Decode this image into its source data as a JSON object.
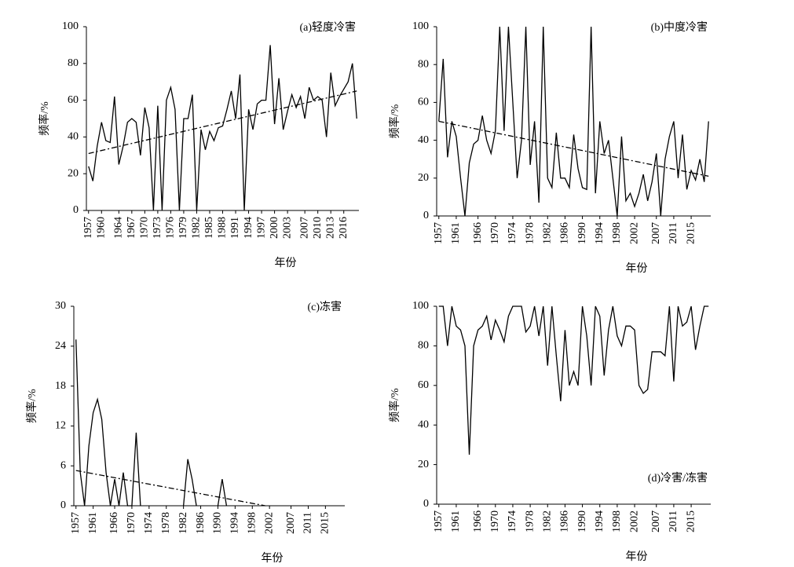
{
  "chart_data": [
    {
      "type": "line",
      "annotation": "(a)轻度冷害",
      "annotation_corner": "top-right",
      "xlabel": "年份",
      "ylabel": "频率/%",
      "x": [
        1957,
        1958,
        1959,
        1960,
        1961,
        1962,
        1963,
        1964,
        1965,
        1966,
        1967,
        1968,
        1969,
        1970,
        1971,
        1972,
        1973,
        1974,
        1975,
        1976,
        1977,
        1978,
        1979,
        1980,
        1981,
        1982,
        1983,
        1984,
        1985,
        1986,
        1987,
        1988,
        1989,
        1990,
        1991,
        1992,
        1993,
        1994,
        1995,
        1996,
        1997,
        1998,
        1999,
        2000,
        2001,
        2002,
        2003,
        2004,
        2005,
        2006,
        2007,
        2008,
        2009,
        2010,
        2011,
        2012,
        2013,
        2014,
        2015,
        2016,
        2017,
        2018,
        2019
      ],
      "series": [
        {
          "color": "#000000",
          "values": [
            24,
            16,
            35,
            48,
            38,
            37,
            62,
            25,
            35,
            48,
            50,
            48,
            30,
            56,
            45,
            0,
            57,
            0,
            60,
            67,
            55,
            0,
            50,
            50,
            63,
            0,
            44,
            33,
            43,
            38,
            45,
            46,
            55,
            65,
            50,
            74,
            0,
            55,
            44,
            58,
            60,
            60,
            90,
            47,
            72,
            44,
            54,
            63,
            56,
            62,
            50,
            67,
            60,
            62,
            60,
            40,
            75,
            57,
            62,
            66,
            70,
            80,
            50
          ]
        }
      ],
      "trend": {
        "x": [
          1957,
          2019
        ],
        "values": [
          31,
          65
        ]
      },
      "xlim": [
        1956.5,
        2019.5
      ],
      "xticks": [
        1957,
        1960,
        1964,
        1967,
        1970,
        1973,
        1976,
        1979,
        1982,
        1985,
        1988,
        1991,
        1994,
        1997,
        2000,
        2003,
        2007,
        2010,
        2013,
        2016
      ],
      "ylim": [
        0,
        100
      ],
      "yticks": [
        0,
        20,
        40,
        60,
        80,
        100
      ]
    },
    {
      "type": "line",
      "annotation": "(b)中度冷害",
      "annotation_corner": "top-right",
      "xlabel": "年份",
      "ylabel": "频率/%",
      "x": [
        1957,
        1958,
        1959,
        1960,
        1961,
        1962,
        1963,
        1964,
        1965,
        1966,
        1967,
        1968,
        1969,
        1970,
        1971,
        1972,
        1973,
        1974,
        1975,
        1976,
        1977,
        1978,
        1979,
        1980,
        1981,
        1982,
        1983,
        1984,
        1985,
        1986,
        1987,
        1988,
        1989,
        1990,
        1991,
        1992,
        1993,
        1994,
        1995,
        1996,
        1997,
        1998,
        1999,
        2000,
        2001,
        2002,
        2003,
        2004,
        2005,
        2006,
        2007,
        2008,
        2009,
        2010,
        2011,
        2012,
        2013,
        2014,
        2015,
        2016,
        2017,
        2018,
        2019
      ],
      "series": [
        {
          "color": "#000000",
          "values": [
            50,
            83,
            31,
            50,
            42,
            20,
            0,
            28,
            38,
            40,
            53,
            40,
            33,
            45,
            100,
            45,
            100,
            60,
            20,
            40,
            100,
            27,
            50,
            7,
            100,
            20,
            15,
            44,
            20,
            20,
            15,
            43,
            25,
            15,
            14,
            100,
            12,
            50,
            33,
            40,
            20,
            0,
            42,
            8,
            12,
            5,
            12,
            22,
            8,
            18,
            33,
            0,
            30,
            42,
            50,
            20,
            43,
            14,
            24,
            19,
            30,
            18,
            50
          ]
        }
      ],
      "trend": {
        "x": [
          1957,
          2019
        ],
        "values": [
          50,
          21
        ]
      },
      "xlim": [
        1956.5,
        2019.5
      ],
      "xticks": [
        1957,
        1961,
        1966,
        1970,
        1974,
        1978,
        1982,
        1986,
        1990,
        1994,
        1998,
        2002,
        2007,
        2011,
        2015
      ],
      "ylim": [
        0,
        100
      ],
      "yticks": [
        0,
        20,
        40,
        60,
        80,
        100
      ]
    },
    {
      "type": "line",
      "annotation": "(c)冻害",
      "annotation_corner": "top-right",
      "xlabel": "年份",
      "ylabel": "频率/%",
      "x": [
        1957,
        1958,
        1959,
        1960,
        1961,
        1962,
        1963,
        1964,
        1965,
        1966,
        1967,
        1968,
        1969,
        1970,
        1971,
        1972,
        1973,
        1974,
        1975,
        1976,
        1977,
        1978,
        1979,
        1980,
        1981,
        1982,
        1983,
        1984,
        1985,
        1986,
        1987,
        1988,
        1989,
        1990,
        1991,
        1992,
        1993,
        1994,
        1995,
        1996,
        1997,
        1998,
        1999,
        2000,
        2001,
        2002,
        2003,
        2004,
        2005,
        2006,
        2007,
        2008,
        2009,
        2010,
        2011,
        2012,
        2013,
        2014,
        2015,
        2016,
        2017,
        2018,
        2019
      ],
      "series": [
        {
          "color": "#000000",
          "values": [
            25,
            5,
            0,
            9,
            14,
            16,
            13,
            5,
            0,
            4,
            0,
            5,
            0,
            0,
            11,
            0,
            null,
            null,
            null,
            null,
            null,
            null,
            null,
            null,
            null,
            0,
            7,
            4,
            0,
            null,
            null,
            null,
            null,
            0,
            4,
            0,
            null,
            null,
            null,
            null,
            null,
            null,
            null,
            null,
            null,
            null,
            null,
            null,
            null,
            null,
            null,
            null,
            null,
            null,
            null,
            null,
            null,
            null,
            null,
            null,
            null,
            null,
            null
          ]
        }
      ],
      "trend": {
        "x": [
          1957,
          2001
        ],
        "values": [
          5.3,
          0
        ]
      },
      "xlim": [
        1956.5,
        2019.5
      ],
      "xticks": [
        1957,
        1961,
        1966,
        1970,
        1974,
        1978,
        1982,
        1986,
        1990,
        1994,
        1998,
        2002,
        2007,
        2011,
        2015
      ],
      "ylim": [
        0,
        30
      ],
      "yticks": [
        0,
        6,
        12,
        18,
        24,
        30
      ]
    },
    {
      "type": "line",
      "annotation": "(d)冷害/冻害",
      "annotation_corner": "bottom-right",
      "xlabel": "年份",
      "ylabel": "频率/%",
      "x": [
        1957,
        1958,
        1959,
        1960,
        1961,
        1962,
        1963,
        1964,
        1965,
        1966,
        1967,
        1968,
        1969,
        1970,
        1971,
        1972,
        1973,
        1974,
        1975,
        1976,
        1977,
        1978,
        1979,
        1980,
        1981,
        1982,
        1983,
        1984,
        1985,
        1986,
        1987,
        1988,
        1989,
        1990,
        1991,
        1992,
        1993,
        1994,
        1995,
        1996,
        1997,
        1998,
        1999,
        2000,
        2001,
        2002,
        2003,
        2004,
        2005,
        2006,
        2007,
        2008,
        2009,
        2010,
        2011,
        2012,
        2013,
        2014,
        2015,
        2016,
        2017,
        2018,
        2019
      ],
      "series": [
        {
          "color": "#000000",
          "values": [
            100,
            100,
            80,
            100,
            90,
            88,
            80,
            25,
            80,
            88,
            90,
            95,
            83,
            93,
            88,
            82,
            95,
            100,
            100,
            100,
            87,
            90,
            100,
            85,
            100,
            70,
            100,
            75,
            52,
            88,
            60,
            67,
            60,
            100,
            85,
            60,
            100,
            95,
            65,
            88,
            100,
            85,
            80,
            90,
            90,
            88,
            60,
            56,
            58,
            77,
            77,
            77,
            75,
            100,
            62,
            100,
            90,
            92,
            100,
            78,
            90,
            100,
            100
          ]
        }
      ],
      "xlim": [
        1956.5,
        2019.5
      ],
      "xticks": [
        1957,
        1961,
        1966,
        1970,
        1974,
        1978,
        1982,
        1986,
        1990,
        1994,
        1998,
        2002,
        2007,
        2011,
        2015
      ],
      "ylim": [
        0,
        100
      ],
      "yticks": [
        0,
        20,
        40,
        60,
        80,
        100
      ]
    }
  ]
}
